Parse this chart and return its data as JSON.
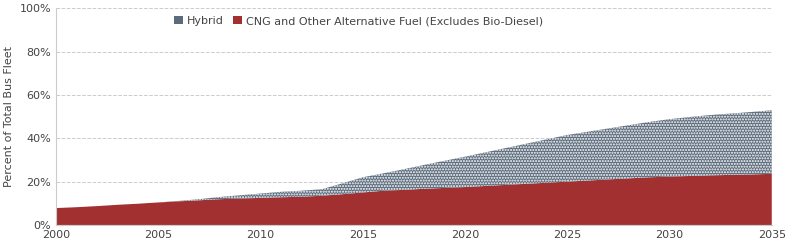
{
  "years": [
    2000,
    2001,
    2002,
    2003,
    2004,
    2005,
    2006,
    2007,
    2008,
    2009,
    2010,
    2011,
    2012,
    2013,
    2014,
    2015,
    2016,
    2017,
    2018,
    2019,
    2020,
    2021,
    2022,
    2023,
    2024,
    2025,
    2026,
    2027,
    2028,
    2029,
    2030,
    2031,
    2032,
    2033,
    2034,
    2035
  ],
  "cng": [
    7.8,
    8.2,
    8.7,
    9.3,
    9.8,
    10.4,
    10.9,
    11.4,
    11.9,
    12.2,
    12.5,
    12.8,
    13.0,
    13.5,
    14.2,
    15.0,
    15.8,
    16.2,
    16.7,
    17.1,
    17.5,
    18.0,
    18.5,
    19.0,
    19.5,
    20.0,
    20.5,
    21.0,
    21.5,
    22.0,
    22.3,
    22.6,
    22.9,
    23.1,
    23.3,
    23.6
  ],
  "hybrid": [
    0.0,
    0.0,
    0.0,
    0.0,
    0.0,
    0.0,
    0.2,
    0.5,
    1.0,
    1.5,
    2.0,
    2.5,
    2.8,
    3.0,
    5.0,
    7.0,
    8.0,
    9.5,
    11.0,
    12.5,
    14.0,
    15.5,
    17.0,
    18.5,
    20.0,
    21.5,
    22.5,
    23.5,
    24.5,
    25.5,
    26.5,
    27.2,
    27.8,
    28.3,
    28.8,
    29.3
  ],
  "cng_color": "#a33030",
  "hybrid_color": "#5b6b7c",
  "hybrid_label": "Hybrid",
  "cng_label": "CNG and Other Alternative Fuel (Excludes Bio-Diesel)",
  "ylabel": "Percent of Total Bus Fleet",
  "ylim": [
    0,
    100
  ],
  "yticks": [
    0,
    20,
    40,
    60,
    80,
    100
  ],
  "xlim": [
    2000,
    2035
  ],
  "xticks": [
    2000,
    2005,
    2010,
    2015,
    2020,
    2025,
    2030,
    2035
  ],
  "bg_color": "#ffffff",
  "grid_color": "#cccccc",
  "axis_fontsize": 8,
  "legend_fontsize": 8
}
